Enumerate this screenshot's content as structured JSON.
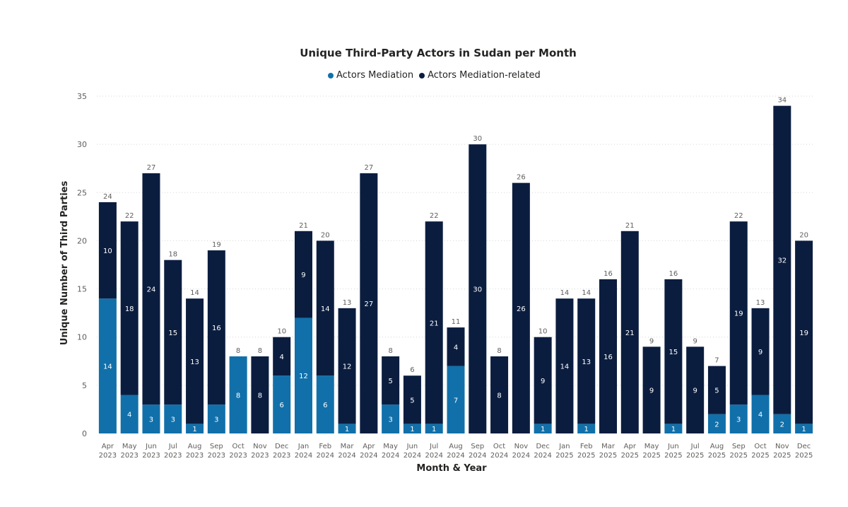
{
  "chart_data": {
    "type": "bar",
    "stacked": true,
    "title": "Unique Third-Party Actors in Sudan per Month",
    "xlabel": "Month & Year",
    "ylabel": "Unique Number of Third Parties",
    "ylim": [
      0,
      35
    ],
    "yticks": [
      0,
      5,
      10,
      15,
      20,
      25,
      30,
      35
    ],
    "grid": true,
    "legend_position": "top-center",
    "categories": [
      [
        "Apr",
        "2023"
      ],
      [
        "May",
        "2023"
      ],
      [
        "Jun",
        "2023"
      ],
      [
        "Jul",
        "2023"
      ],
      [
        "Aug",
        "2023"
      ],
      [
        "Sep",
        "2023"
      ],
      [
        "Oct",
        "2023"
      ],
      [
        "Nov",
        "2023"
      ],
      [
        "Dec",
        "2023"
      ],
      [
        "Jan",
        "2024"
      ],
      [
        "Feb",
        "2024"
      ],
      [
        "Mar",
        "2024"
      ],
      [
        "Apr",
        "2024"
      ],
      [
        "May",
        "2024"
      ],
      [
        "Jun",
        "2024"
      ],
      [
        "Jul",
        "2024"
      ],
      [
        "Aug",
        "2024"
      ],
      [
        "Sep",
        "2024"
      ],
      [
        "Oct",
        "2024"
      ],
      [
        "Nov",
        "2024"
      ],
      [
        "Dec",
        "2024"
      ],
      [
        "Jan",
        "2025"
      ],
      [
        "Feb",
        "2025"
      ],
      [
        "Mar",
        "2025"
      ],
      [
        "Apr",
        "2025"
      ],
      [
        "May",
        "2025"
      ],
      [
        "Jun",
        "2025"
      ],
      [
        "Jul",
        "2025"
      ],
      [
        "Aug",
        "2025"
      ],
      [
        "Sep",
        "2025"
      ],
      [
        "Oct",
        "2025"
      ],
      [
        "Nov",
        "2025"
      ],
      [
        "Dec",
        "2025"
      ]
    ],
    "series": [
      {
        "name": "Actors Mediation",
        "color": "#1170aa",
        "values": [
          14,
          4,
          3,
          3,
          1,
          3,
          8,
          0,
          6,
          12,
          6,
          1,
          0,
          3,
          1,
          1,
          7,
          0,
          0,
          0,
          1,
          0,
          1,
          0,
          0,
          0,
          1,
          0,
          2,
          3,
          4,
          2,
          1
        ]
      },
      {
        "name": "Actors Mediation-related",
        "color": "#0b1d3f",
        "values": [
          10,
          18,
          24,
          15,
          13,
          16,
          0,
          8,
          4,
          9,
          14,
          12,
          27,
          5,
          5,
          21,
          4,
          30,
          8,
          26,
          9,
          14,
          13,
          16,
          21,
          9,
          15,
          9,
          5,
          19,
          9,
          32,
          19
        ]
      }
    ],
    "totals": [
      24,
      22,
      27,
      18,
      14,
      19,
      8,
      8,
      10,
      21,
      20,
      13,
      27,
      8,
      6,
      22,
      11,
      30,
      8,
      26,
      10,
      14,
      14,
      16,
      21,
      9,
      16,
      9,
      7,
      22,
      13,
      34,
      20
    ]
  }
}
